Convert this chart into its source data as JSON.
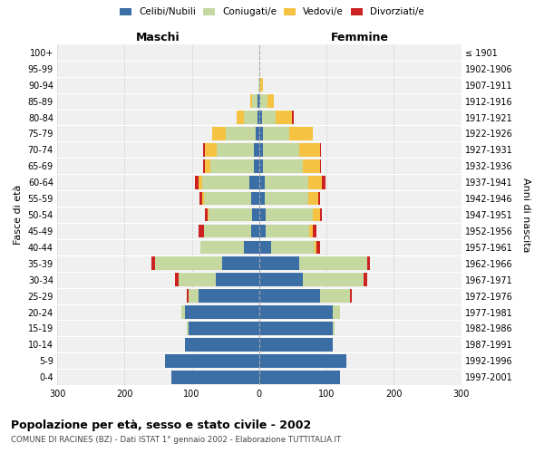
{
  "age_groups": [
    "0-4",
    "5-9",
    "10-14",
    "15-19",
    "20-24",
    "25-29",
    "30-34",
    "35-39",
    "40-44",
    "45-49",
    "50-54",
    "55-59",
    "60-64",
    "65-69",
    "70-74",
    "75-79",
    "80-84",
    "85-89",
    "90-94",
    "95-99",
    "100+"
  ],
  "birth_years": [
    "1997-2001",
    "1992-1996",
    "1987-1991",
    "1982-1986",
    "1977-1981",
    "1972-1976",
    "1967-1971",
    "1962-1966",
    "1957-1961",
    "1952-1956",
    "1947-1951",
    "1942-1946",
    "1937-1941",
    "1932-1936",
    "1927-1931",
    "1922-1926",
    "1917-1921",
    "1912-1916",
    "1907-1911",
    "1902-1906",
    "≤ 1901"
  ],
  "male_celibi": [
    130,
    140,
    110,
    105,
    110,
    90,
    65,
    55,
    22,
    12,
    10,
    12,
    15,
    8,
    8,
    5,
    3,
    2,
    0,
    0,
    0
  ],
  "male_coniugati": [
    0,
    0,
    0,
    2,
    5,
    15,
    55,
    100,
    65,
    70,
    65,
    70,
    70,
    65,
    55,
    45,
    20,
    8,
    1,
    0,
    0
  ],
  "male_vedovi": [
    0,
    0,
    0,
    0,
    0,
    0,
    0,
    0,
    0,
    0,
    1,
    2,
    5,
    8,
    18,
    20,
    10,
    3,
    0,
    0,
    0
  ],
  "male_divorziati": [
    0,
    0,
    0,
    0,
    0,
    2,
    5,
    5,
    0,
    8,
    5,
    5,
    5,
    2,
    2,
    0,
    0,
    0,
    0,
    0,
    0
  ],
  "female_celibi": [
    120,
    130,
    110,
    110,
    110,
    90,
    65,
    60,
    18,
    10,
    10,
    8,
    8,
    5,
    5,
    5,
    4,
    2,
    0,
    0,
    0
  ],
  "female_coniugati": [
    0,
    0,
    0,
    2,
    10,
    45,
    90,
    100,
    65,
    65,
    70,
    65,
    65,
    60,
    55,
    40,
    20,
    10,
    2,
    0,
    0
  ],
  "female_vedovi": [
    0,
    0,
    0,
    0,
    0,
    0,
    0,
    0,
    2,
    5,
    10,
    15,
    20,
    25,
    30,
    35,
    25,
    10,
    3,
    0,
    0
  ],
  "female_divorziati": [
    0,
    0,
    0,
    0,
    0,
    2,
    5,
    5,
    5,
    5,
    3,
    3,
    5,
    2,
    2,
    0,
    2,
    0,
    0,
    0,
    0
  ],
  "colors": {
    "celibi": "#3A6EA5",
    "coniugati": "#C5D8A0",
    "vedovi": "#F5C242",
    "divorziati": "#CC2222"
  },
  "title": "Popolazione per età, sesso e stato civile - 2002",
  "subtitle": "COMUNE DI RACINES (BZ) - Dati ISTAT 1° gennaio 2002 - Elaborazione TUTTITALIA.IT",
  "xlabel_left": "Maschi",
  "xlabel_right": "Femmine",
  "ylabel_left": "Fasce di età",
  "ylabel_right": "Anni di nascita",
  "xlim": 300,
  "bg_color": "#f0f0f0",
  "grid_color": "#cccccc"
}
